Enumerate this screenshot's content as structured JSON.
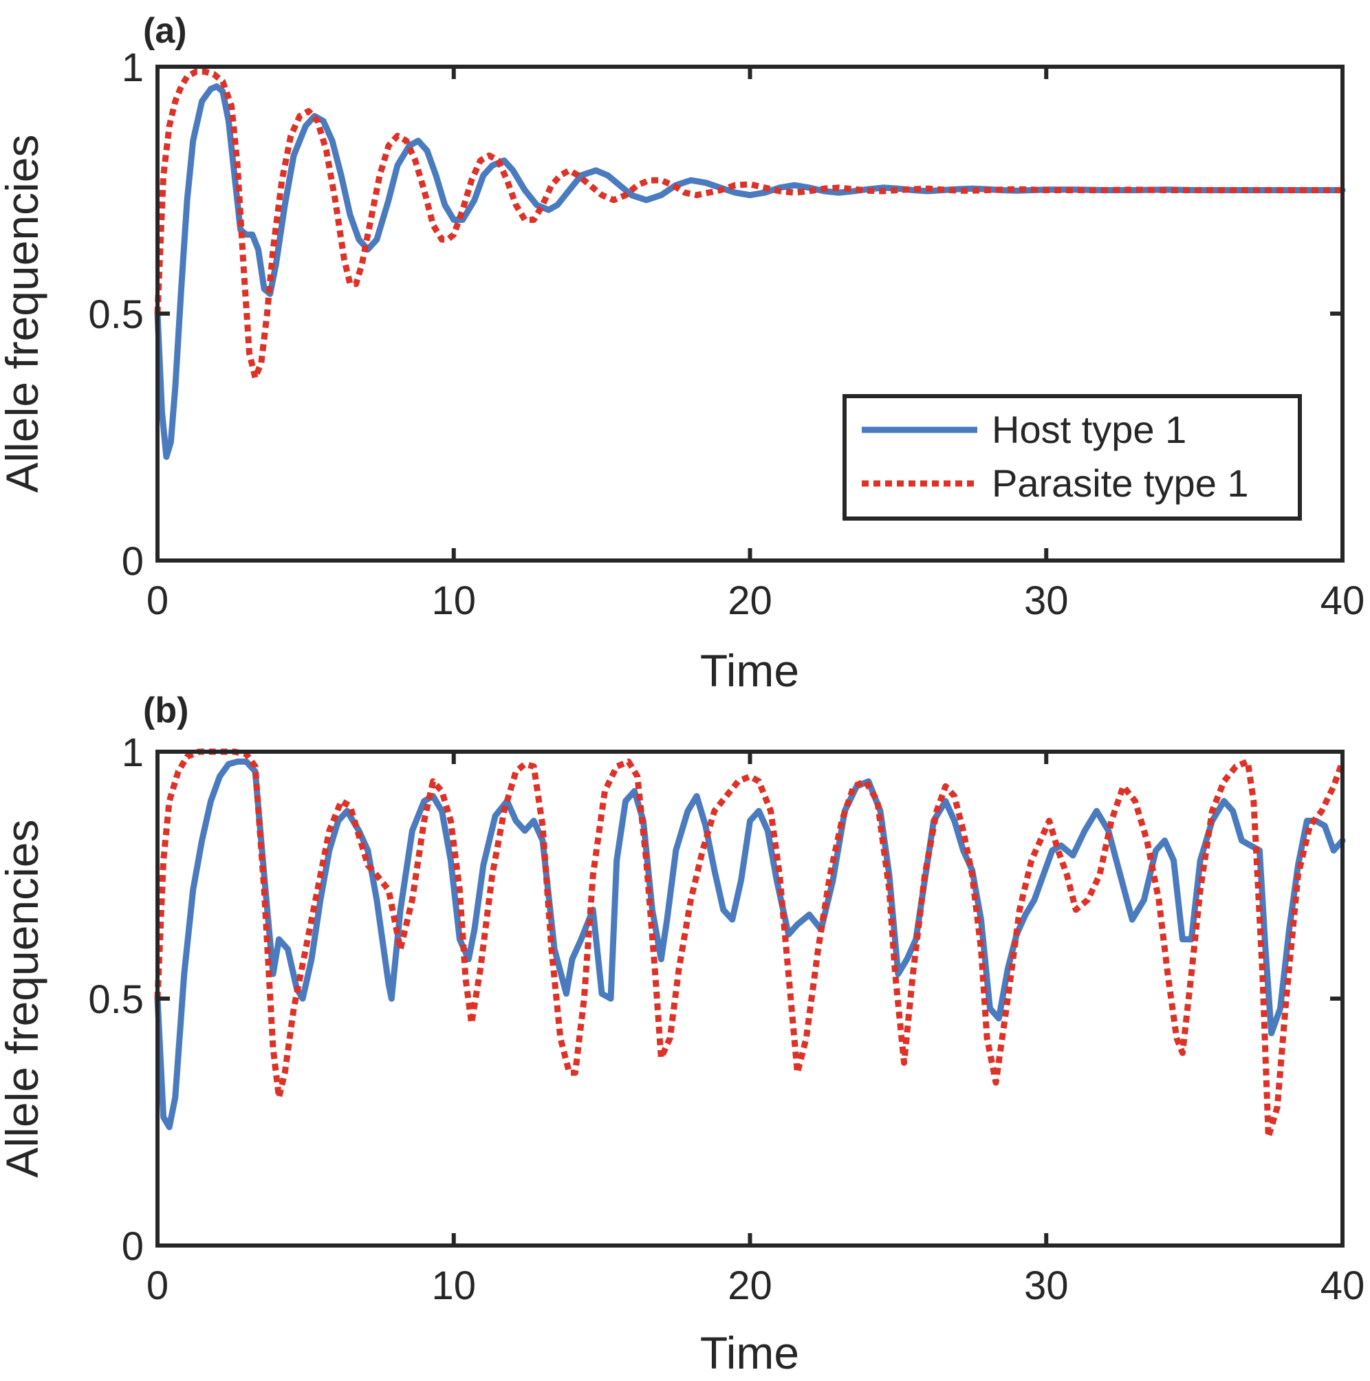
{
  "chart_data": [
    {
      "panel_label": "(a)",
      "type": "line",
      "xlabel": "Time",
      "ylabel": "Allele frequencies",
      "xlim": [
        0,
        40
      ],
      "ylim": [
        0,
        1
      ],
      "x_ticks": [
        0,
        10,
        20,
        30,
        40
      ],
      "y_ticks": [
        0,
        0.5,
        1
      ],
      "grid": false,
      "legend": {
        "position": "lower-right",
        "entries": [
          "Host type 1",
          "Parasite type 1"
        ]
      },
      "series": [
        {
          "name": "Host type 1",
          "color": "#4a7bbf",
          "style": "solid",
          "x": [
            0,
            0.15,
            0.3,
            0.45,
            0.6,
            0.8,
            1.0,
            1.2,
            1.5,
            1.8,
            2.0,
            2.2,
            2.4,
            2.6,
            2.8,
            3.0,
            3.2,
            3.4,
            3.6,
            3.8,
            4.0,
            4.3,
            4.6,
            5.0,
            5.3,
            5.6,
            5.9,
            6.2,
            6.5,
            6.8,
            7.1,
            7.4,
            7.8,
            8.1,
            8.5,
            8.8,
            9.1,
            9.4,
            9.7,
            10.0,
            10.3,
            10.7,
            11.0,
            11.3,
            11.7,
            12.0,
            12.4,
            12.8,
            13.2,
            13.5,
            13.9,
            14.3,
            14.8,
            15.2,
            15.6,
            16.0,
            16.5,
            17.0,
            17.5,
            18.0,
            18.5,
            19.0,
            19.5,
            20.0,
            20.5,
            21.0,
            21.5,
            22.0,
            22.5,
            23.0,
            23.5,
            24.0,
            24.5,
            25.0,
            25.5,
            26.0,
            26.5,
            27.0,
            27.5,
            28.0,
            28.5,
            29.0,
            29.5,
            30.0,
            31.0,
            32.0,
            33.0,
            34.0,
            35.0,
            36.0,
            37.0,
            38.0,
            39.0,
            40.0
          ],
          "y": [
            0.5,
            0.3,
            0.21,
            0.24,
            0.35,
            0.55,
            0.73,
            0.85,
            0.93,
            0.955,
            0.96,
            0.95,
            0.89,
            0.78,
            0.67,
            0.66,
            0.66,
            0.63,
            0.55,
            0.54,
            0.6,
            0.72,
            0.82,
            0.88,
            0.9,
            0.89,
            0.85,
            0.78,
            0.7,
            0.65,
            0.63,
            0.65,
            0.73,
            0.8,
            0.84,
            0.85,
            0.83,
            0.78,
            0.72,
            0.69,
            0.69,
            0.73,
            0.78,
            0.8,
            0.81,
            0.79,
            0.75,
            0.72,
            0.71,
            0.72,
            0.75,
            0.78,
            0.79,
            0.78,
            0.76,
            0.74,
            0.73,
            0.74,
            0.76,
            0.77,
            0.765,
            0.755,
            0.745,
            0.74,
            0.745,
            0.755,
            0.76,
            0.755,
            0.748,
            0.745,
            0.748,
            0.752,
            0.755,
            0.753,
            0.75,
            0.748,
            0.75,
            0.752,
            0.753,
            0.752,
            0.75,
            0.749,
            0.75,
            0.751,
            0.751,
            0.75,
            0.75,
            0.751,
            0.75,
            0.75,
            0.75,
            0.75,
            0.75,
            0.75
          ]
        },
        {
          "name": "Parasite type 1",
          "color": "#dd3228",
          "style": "dotted",
          "x": [
            0,
            0.2,
            0.4,
            0.6,
            0.8,
            1.0,
            1.3,
            1.6,
            1.9,
            2.2,
            2.5,
            2.7,
            2.9,
            3.1,
            3.3,
            3.5,
            3.7,
            3.9,
            4.2,
            4.5,
            4.8,
            5.1,
            5.4,
            5.7,
            6.0,
            6.3,
            6.5,
            6.7,
            6.9,
            7.2,
            7.5,
            7.8,
            8.1,
            8.4,
            8.7,
            9.0,
            9.3,
            9.6,
            9.8,
            10.0,
            10.3,
            10.6,
            10.9,
            11.2,
            11.5,
            11.8,
            12.1,
            12.4,
            12.7,
            13.0,
            13.3,
            13.6,
            13.9,
            14.2,
            14.6,
            15.0,
            15.4,
            15.8,
            16.2,
            16.6,
            17.0,
            17.4,
            17.8,
            18.2,
            18.6,
            19.0,
            19.5,
            20.0,
            20.5,
            21.0,
            21.5,
            22.0,
            22.5,
            23.0,
            23.5,
            24.0,
            24.5,
            25.0,
            25.5,
            26.0,
            26.5,
            27.0,
            27.5,
            28.0,
            28.5,
            29.0,
            29.5,
            30.0,
            31.0,
            32.0,
            33.0,
            34.0,
            35.0,
            36.0,
            37.0,
            38.0,
            39.0,
            40.0
          ],
          "y": [
            0.5,
            0.78,
            0.88,
            0.93,
            0.96,
            0.98,
            0.99,
            0.99,
            0.985,
            0.97,
            0.92,
            0.8,
            0.6,
            0.42,
            0.37,
            0.4,
            0.5,
            0.63,
            0.77,
            0.86,
            0.9,
            0.91,
            0.89,
            0.83,
            0.73,
            0.61,
            0.56,
            0.56,
            0.6,
            0.69,
            0.78,
            0.84,
            0.86,
            0.85,
            0.81,
            0.75,
            0.68,
            0.65,
            0.65,
            0.66,
            0.71,
            0.77,
            0.81,
            0.82,
            0.81,
            0.77,
            0.72,
            0.69,
            0.69,
            0.72,
            0.76,
            0.78,
            0.79,
            0.78,
            0.76,
            0.74,
            0.73,
            0.74,
            0.76,
            0.77,
            0.77,
            0.76,
            0.745,
            0.74,
            0.745,
            0.75,
            0.76,
            0.762,
            0.755,
            0.748,
            0.745,
            0.748,
            0.753,
            0.755,
            0.752,
            0.749,
            0.748,
            0.75,
            0.752,
            0.753,
            0.751,
            0.749,
            0.749,
            0.75,
            0.751,
            0.752,
            0.751,
            0.75,
            0.75,
            0.75,
            0.751,
            0.75,
            0.75,
            0.75,
            0.75,
            0.75,
            0.75,
            0.75
          ]
        }
      ]
    },
    {
      "panel_label": "(b)",
      "type": "line",
      "xlabel": "Time",
      "ylabel": "Allele frequencies",
      "xlim": [
        0,
        40
      ],
      "ylim": [
        0,
        1
      ],
      "x_ticks": [
        0,
        10,
        20,
        30,
        40
      ],
      "y_ticks": [
        0,
        0.5,
        1
      ],
      "grid": false,
      "series": [
        {
          "name": "Host type 1",
          "color": "#4a7bbf",
          "style": "solid",
          "x": [
            0,
            0.2,
            0.4,
            0.6,
            0.9,
            1.2,
            1.5,
            1.8,
            2.1,
            2.4,
            2.7,
            3.0,
            3.3,
            3.6,
            3.9,
            4.1,
            4.4,
            4.7,
            4.9,
            5.2,
            5.5,
            5.8,
            6.1,
            6.4,
            6.8,
            7.1,
            7.4,
            7.8,
            7.9,
            8.2,
            8.6,
            9.0,
            9.3,
            9.6,
            9.9,
            10.2,
            10.5,
            10.7,
            11.0,
            11.4,
            11.8,
            12.1,
            12.4,
            12.7,
            13.0,
            13.4,
            13.8,
            14.0,
            14.3,
            14.7,
            15.0,
            15.3,
            15.5,
            15.8,
            16.1,
            16.4,
            16.7,
            17.0,
            17.2,
            17.5,
            17.9,
            18.2,
            18.5,
            18.8,
            19.1,
            19.4,
            19.7,
            20.0,
            20.3,
            20.6,
            20.9,
            21.3,
            21.6,
            22.0,
            22.4,
            22.8,
            23.2,
            23.6,
            24.0,
            24.4,
            24.7,
            25.0,
            25.3,
            25.6,
            25.9,
            26.2,
            26.6,
            26.9,
            27.2,
            27.5,
            27.8,
            28.1,
            28.4,
            28.7,
            29.0,
            29.3,
            29.6,
            29.9,
            30.2,
            30.5,
            30.9,
            31.3,
            31.7,
            32.1,
            32.5,
            32.9,
            33.3,
            33.7,
            34.0,
            34.3,
            34.6,
            34.9,
            35.2,
            35.6,
            36.0,
            36.3,
            36.6,
            36.9,
            37.2,
            37.4,
            37.6,
            37.9,
            38.2,
            38.5,
            38.8,
            39.1,
            39.4,
            39.7,
            40.0
          ],
          "y": [
            0.5,
            0.26,
            0.24,
            0.3,
            0.55,
            0.72,
            0.82,
            0.9,
            0.95,
            0.975,
            0.98,
            0.98,
            0.96,
            0.75,
            0.55,
            0.62,
            0.6,
            0.52,
            0.5,
            0.58,
            0.7,
            0.8,
            0.86,
            0.88,
            0.84,
            0.8,
            0.7,
            0.53,
            0.5,
            0.68,
            0.84,
            0.9,
            0.91,
            0.88,
            0.78,
            0.62,
            0.58,
            0.64,
            0.77,
            0.87,
            0.9,
            0.86,
            0.84,
            0.86,
            0.82,
            0.6,
            0.51,
            0.58,
            0.62,
            0.68,
            0.51,
            0.5,
            0.78,
            0.9,
            0.92,
            0.86,
            0.68,
            0.58,
            0.66,
            0.8,
            0.88,
            0.91,
            0.85,
            0.76,
            0.68,
            0.66,
            0.74,
            0.86,
            0.88,
            0.84,
            0.74,
            0.63,
            0.65,
            0.67,
            0.64,
            0.74,
            0.88,
            0.93,
            0.94,
            0.88,
            0.75,
            0.55,
            0.58,
            0.62,
            0.74,
            0.86,
            0.9,
            0.86,
            0.8,
            0.76,
            0.66,
            0.48,
            0.46,
            0.56,
            0.63,
            0.67,
            0.7,
            0.75,
            0.8,
            0.81,
            0.79,
            0.84,
            0.88,
            0.84,
            0.75,
            0.66,
            0.7,
            0.8,
            0.82,
            0.78,
            0.62,
            0.62,
            0.78,
            0.86,
            0.9,
            0.88,
            0.82,
            0.81,
            0.8,
            0.6,
            0.43,
            0.48,
            0.64,
            0.77,
            0.86,
            0.86,
            0.85,
            0.8,
            0.82
          ]
        },
        {
          "name": "Parasite type 1",
          "color": "#dd3228",
          "style": "dotted",
          "x": [
            0,
            0.2,
            0.4,
            0.7,
            1.0,
            1.4,
            1.8,
            2.2,
            2.6,
            3.0,
            3.3,
            3.6,
            3.9,
            4.1,
            4.3,
            4.6,
            5.0,
            5.4,
            5.8,
            6.2,
            6.5,
            6.8,
            7.1,
            7.4,
            7.8,
            8.2,
            8.6,
            9.0,
            9.3,
            9.6,
            9.9,
            10.2,
            10.4,
            10.6,
            10.9,
            11.3,
            11.7,
            12.1,
            12.4,
            12.7,
            13.0,
            13.3,
            13.6,
            13.9,
            14.1,
            14.4,
            14.7,
            15.1,
            15.5,
            15.9,
            16.2,
            16.5,
            16.8,
            17.0,
            17.3,
            17.6,
            18.0,
            18.4,
            18.8,
            19.2,
            19.6,
            20.0,
            20.3,
            20.7,
            21.0,
            21.3,
            21.6,
            21.9,
            22.3,
            22.7,
            23.1,
            23.5,
            23.9,
            24.3,
            24.7,
            24.9,
            25.2,
            25.5,
            25.9,
            26.3,
            26.6,
            26.9,
            27.2,
            27.5,
            27.8,
            28.0,
            28.3,
            28.7,
            29.1,
            29.5,
            29.8,
            30.1,
            30.4,
            30.7,
            31.0,
            31.4,
            31.8,
            32.2,
            32.6,
            33.0,
            33.4,
            33.8,
            34.1,
            34.4,
            34.6,
            34.9,
            35.2,
            35.6,
            36.0,
            36.4,
            36.8,
            37.0,
            37.3,
            37.5,
            37.8,
            38.1,
            38.5,
            38.9,
            39.3,
            39.7,
            40.0
          ],
          "y": [
            0.5,
            0.78,
            0.9,
            0.96,
            0.99,
            1.0,
            1.0,
            1.0,
            1.0,
            0.995,
            0.97,
            0.72,
            0.4,
            0.3,
            0.35,
            0.48,
            0.6,
            0.72,
            0.84,
            0.9,
            0.89,
            0.83,
            0.77,
            0.75,
            0.72,
            0.6,
            0.7,
            0.86,
            0.94,
            0.92,
            0.86,
            0.72,
            0.54,
            0.45,
            0.56,
            0.75,
            0.88,
            0.96,
            0.975,
            0.97,
            0.85,
            0.6,
            0.42,
            0.35,
            0.35,
            0.5,
            0.75,
            0.92,
            0.97,
            0.98,
            0.95,
            0.78,
            0.55,
            0.38,
            0.42,
            0.56,
            0.7,
            0.8,
            0.88,
            0.91,
            0.94,
            0.95,
            0.94,
            0.88,
            0.75,
            0.55,
            0.35,
            0.42,
            0.6,
            0.75,
            0.86,
            0.93,
            0.94,
            0.9,
            0.72,
            0.55,
            0.37,
            0.55,
            0.75,
            0.88,
            0.93,
            0.91,
            0.84,
            0.75,
            0.6,
            0.42,
            0.33,
            0.5,
            0.68,
            0.78,
            0.82,
            0.86,
            0.8,
            0.75,
            0.68,
            0.7,
            0.75,
            0.86,
            0.93,
            0.9,
            0.82,
            0.7,
            0.55,
            0.42,
            0.39,
            0.55,
            0.72,
            0.88,
            0.94,
            0.97,
            0.98,
            0.9,
            0.55,
            0.22,
            0.28,
            0.5,
            0.75,
            0.85,
            0.88,
            0.93,
            0.98
          ]
        }
      ]
    }
  ]
}
